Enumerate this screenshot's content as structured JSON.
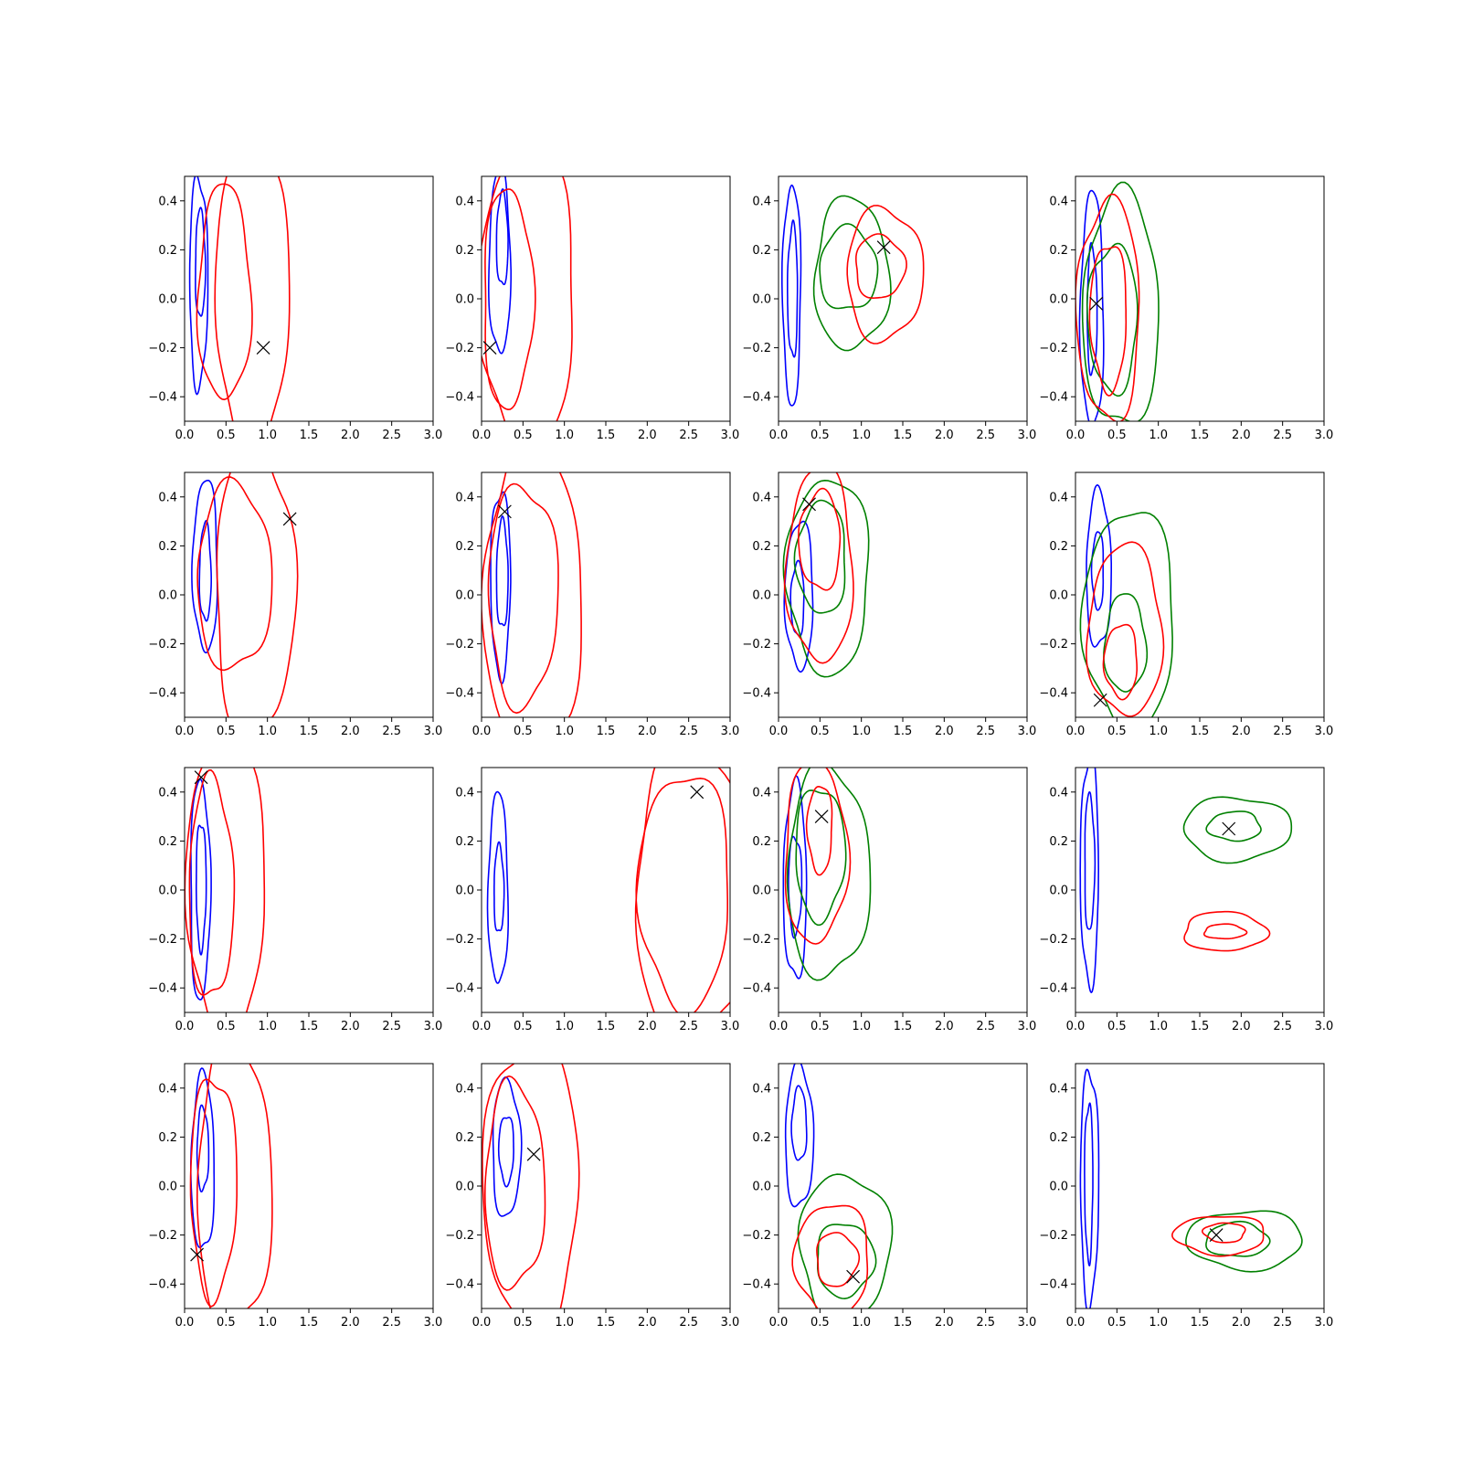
{
  "colors": {
    "blue": "#0000ff",
    "red": "#ff0000",
    "green": "#008000",
    "marker": "#000000"
  },
  "axes_common": {
    "xlim": [
      0,
      3
    ],
    "ylim": [
      -0.5,
      0.5
    ],
    "xticks": [
      "0.0",
      "0.5",
      "1.0",
      "1.5",
      "2.0",
      "2.5",
      "3.0"
    ],
    "yticks": [
      "−0.4",
      "−0.2",
      "0.0",
      "0.2",
      "0.4"
    ]
  },
  "chart_data": [
    {
      "type": "contour",
      "row": 1,
      "col": 1,
      "title": "",
      "xlim": [
        0,
        3
      ],
      "ylim": [
        -0.5,
        0.5
      ],
      "series": [
        {
          "color": "blue",
          "levels": [
            {
              "cx": 0.17,
              "cy": 0.07,
              "rx": 0.11,
              "ry": 0.43
            },
            {
              "cx": 0.19,
              "cy": 0.14,
              "rx": 0.06,
              "ry": 0.22
            }
          ]
        },
        {
          "color": "red",
          "levels": [
            {
              "cx": 0.48,
              "cy": 0.02,
              "rx": 0.32,
              "ry": 0.44
            },
            {
              "cx": 0.82,
              "cy": 0.0,
              "rx": 0.45,
              "ry": 0.62
            }
          ]
        }
      ],
      "marker": {
        "x": 0.95,
        "y": -0.2
      }
    },
    {
      "type": "contour",
      "row": 1,
      "col": 2,
      "title": "",
      "xlim": [
        0,
        3
      ],
      "ylim": [
        -0.5,
        0.5
      ],
      "series": [
        {
          "color": "blue",
          "levels": [
            {
              "cx": 0.22,
              "cy": 0.15,
              "rx": 0.13,
              "ry": 0.38
            },
            {
              "cx": 0.25,
              "cy": 0.24,
              "rx": 0.07,
              "ry": 0.19
            }
          ]
        },
        {
          "color": "red",
          "levels": [
            {
              "cx": 0.32,
              "cy": 0.0,
              "rx": 0.3,
              "ry": 0.45
            },
            {
              "cx": 0.55,
              "cy": 0.0,
              "rx": 0.58,
              "ry": 0.62
            }
          ]
        }
      ],
      "marker": {
        "x": 0.1,
        "y": -0.2
      }
    },
    {
      "type": "contour",
      "row": 1,
      "col": 3,
      "title": "",
      "xlim": [
        0,
        3
      ],
      "ylim": [
        -0.5,
        0.5
      ],
      "series": [
        {
          "color": "blue",
          "levels": [
            {
              "cx": 0.16,
              "cy": 0.02,
              "rx": 0.11,
              "ry": 0.45
            },
            {
              "cx": 0.17,
              "cy": 0.03,
              "rx": 0.06,
              "ry": 0.27
            }
          ]
        },
        {
          "color": "green",
          "levels": [
            {
              "cx": 0.88,
              "cy": 0.1,
              "rx": 0.45,
              "ry": 0.31
            },
            {
              "cx": 0.84,
              "cy": 0.12,
              "rx": 0.35,
              "ry": 0.17
            }
          ]
        },
        {
          "color": "red",
          "levels": [
            {
              "cx": 1.28,
              "cy": 0.1,
              "rx": 0.46,
              "ry": 0.27
            },
            {
              "cx": 1.22,
              "cy": 0.13,
              "rx": 0.3,
              "ry": 0.13
            }
          ]
        }
      ],
      "marker": {
        "x": 1.27,
        "y": 0.21
      }
    },
    {
      "type": "contour",
      "row": 1,
      "col": 4,
      "title": "",
      "xlim": [
        0,
        3
      ],
      "ylim": [
        -0.5,
        0.5
      ],
      "series": [
        {
          "color": "blue",
          "levels": [
            {
              "cx": 0.2,
              "cy": -0.05,
              "rx": 0.14,
              "ry": 0.48
            },
            {
              "cx": 0.2,
              "cy": -0.05,
              "rx": 0.06,
              "ry": 0.26
            }
          ]
        },
        {
          "color": "green",
          "levels": [
            {
              "cx": 0.55,
              "cy": -0.05,
              "rx": 0.46,
              "ry": 0.48
            },
            {
              "cx": 0.45,
              "cy": -0.08,
              "rx": 0.3,
              "ry": 0.3
            }
          ]
        },
        {
          "color": "red",
          "levels": [
            {
              "cx": 0.4,
              "cy": -0.05,
              "rx": 0.38,
              "ry": 0.45
            },
            {
              "cx": 0.4,
              "cy": -0.07,
              "rx": 0.22,
              "ry": 0.3
            }
          ]
        }
      ],
      "marker": {
        "x": 0.25,
        "y": -0.02
      }
    },
    {
      "type": "contour",
      "row": 2,
      "col": 1,
      "title": "",
      "xlim": [
        0,
        3
      ],
      "ylim": [
        -0.5,
        0.5
      ],
      "series": [
        {
          "color": "blue",
          "levels": [
            {
              "cx": 0.25,
              "cy": 0.12,
              "rx": 0.15,
              "ry": 0.35
            },
            {
              "cx": 0.25,
              "cy": 0.09,
              "rx": 0.07,
              "ry": 0.2
            }
          ]
        },
        {
          "color": "red",
          "levels": [
            {
              "cx": 0.6,
              "cy": 0.07,
              "rx": 0.45,
              "ry": 0.38
            },
            {
              "cx": 0.85,
              "cy": 0.02,
              "rx": 0.48,
              "ry": 0.6
            }
          ]
        }
      ],
      "marker": {
        "x": 1.27,
        "y": 0.31
      }
    },
    {
      "type": "contour",
      "row": 2,
      "col": 2,
      "title": "",
      "xlim": [
        0,
        3
      ],
      "ylim": [
        -0.5,
        0.5
      ],
      "series": [
        {
          "color": "blue",
          "levels": [
            {
              "cx": 0.23,
              "cy": 0.05,
              "rx": 0.12,
              "ry": 0.38
            },
            {
              "cx": 0.25,
              "cy": 0.08,
              "rx": 0.07,
              "ry": 0.22
            }
          ]
        },
        {
          "color": "red",
          "levels": [
            {
              "cx": 0.5,
              "cy": 0.0,
              "rx": 0.42,
              "ry": 0.45
            },
            {
              "cx": 0.62,
              "cy": 0.0,
              "rx": 0.6,
              "ry": 0.63
            }
          ]
        }
      ],
      "marker": {
        "x": 0.28,
        "y": 0.34
      }
    },
    {
      "type": "contour",
      "row": 2,
      "col": 3,
      "title": "",
      "xlim": [
        0,
        3
      ],
      "ylim": [
        -0.5,
        0.5
      ],
      "series": [
        {
          "color": "blue",
          "levels": [
            {
              "cx": 0.25,
              "cy": 0.0,
              "rx": 0.17,
              "ry": 0.3
            },
            {
              "cx": 0.23,
              "cy": -0.02,
              "rx": 0.08,
              "ry": 0.15
            }
          ]
        },
        {
          "color": "green",
          "levels": [
            {
              "cx": 0.6,
              "cy": 0.08,
              "rx": 0.5,
              "ry": 0.4
            },
            {
              "cx": 0.52,
              "cy": 0.15,
              "rx": 0.3,
              "ry": 0.23
            }
          ]
        },
        {
          "color": "red",
          "levels": [
            {
              "cx": 0.5,
              "cy": 0.12,
              "rx": 0.4,
              "ry": 0.4
            },
            {
              "cx": 0.5,
              "cy": 0.22,
              "rx": 0.25,
              "ry": 0.2
            }
          ]
        }
      ],
      "marker": {
        "x": 0.37,
        "y": 0.37
      }
    },
    {
      "type": "contour",
      "row": 2,
      "col": 4,
      "title": "",
      "xlim": [
        0,
        3
      ],
      "ylim": [
        -0.5,
        0.5
      ],
      "series": [
        {
          "color": "blue",
          "levels": [
            {
              "cx": 0.28,
              "cy": 0.1,
              "rx": 0.15,
              "ry": 0.32
            },
            {
              "cx": 0.27,
              "cy": 0.1,
              "rx": 0.07,
              "ry": 0.16
            }
          ]
        },
        {
          "color": "green",
          "levels": [
            {
              "cx": 0.65,
              "cy": -0.1,
              "rx": 0.55,
              "ry": 0.45
            },
            {
              "cx": 0.6,
              "cy": -0.2,
              "rx": 0.25,
              "ry": 0.2
            }
          ]
        },
        {
          "color": "red",
          "levels": [
            {
              "cx": 0.6,
              "cy": -0.15,
              "rx": 0.45,
              "ry": 0.35
            },
            {
              "cx": 0.55,
              "cy": -0.27,
              "rx": 0.2,
              "ry": 0.15
            }
          ]
        }
      ],
      "marker": {
        "x": 0.3,
        "y": -0.43
      }
    },
    {
      "type": "contour",
      "row": 3,
      "col": 1,
      "title": "",
      "xlim": [
        0,
        3
      ],
      "ylim": [
        -0.5,
        0.5
      ],
      "series": [
        {
          "color": "blue",
          "levels": [
            {
              "cx": 0.19,
              "cy": 0.0,
              "rx": 0.12,
              "ry": 0.45
            },
            {
              "cx": 0.2,
              "cy": 0.02,
              "rx": 0.06,
              "ry": 0.26
            }
          ]
        },
        {
          "color": "red",
          "levels": [
            {
              "cx": 0.32,
              "cy": 0.0,
              "rx": 0.27,
              "ry": 0.45
            },
            {
              "cx": 0.5,
              "cy": 0.0,
              "rx": 0.48,
              "ry": 0.6
            }
          ]
        }
      ],
      "marker": {
        "x": 0.2,
        "y": 0.46
      }
    },
    {
      "type": "contour",
      "row": 3,
      "col": 2,
      "title": "",
      "xlim": [
        0,
        3
      ],
      "ylim": [
        -0.5,
        0.5
      ],
      "series": [
        {
          "color": "blue",
          "levels": [
            {
              "cx": 0.2,
              "cy": 0.0,
              "rx": 0.12,
              "ry": 0.39
            },
            {
              "cx": 0.21,
              "cy": 0.0,
              "rx": 0.06,
              "ry": 0.18
            }
          ]
        },
        {
          "color": "red",
          "levels": [
            {
              "cx": 2.45,
              "cy": 0.0,
              "rx": 0.55,
              "ry": 0.48
            },
            {
              "cx": 2.55,
              "cy": -0.02,
              "rx": 0.7,
              "ry": 0.62
            }
          ]
        }
      ],
      "marker": {
        "x": 2.6,
        "y": 0.4
      }
    },
    {
      "type": "contour",
      "row": 3,
      "col": 3,
      "title": "",
      "xlim": [
        0,
        3
      ],
      "ylim": [
        -0.5,
        0.5
      ],
      "series": [
        {
          "color": "blue",
          "levels": [
            {
              "cx": 0.2,
              "cy": 0.03,
              "rx": 0.14,
              "ry": 0.4
            },
            {
              "cx": 0.2,
              "cy": 0.02,
              "rx": 0.08,
              "ry": 0.2
            }
          ]
        },
        {
          "color": "green",
          "levels": [
            {
              "cx": 0.6,
              "cy": 0.07,
              "rx": 0.5,
              "ry": 0.43
            },
            {
              "cx": 0.5,
              "cy": 0.15,
              "rx": 0.3,
              "ry": 0.27
            }
          ]
        },
        {
          "color": "red",
          "levels": [
            {
              "cx": 0.45,
              "cy": 0.15,
              "rx": 0.38,
              "ry": 0.37
            },
            {
              "cx": 0.5,
              "cy": 0.25,
              "rx": 0.15,
              "ry": 0.18
            }
          ]
        }
      ],
      "marker": {
        "x": 0.52,
        "y": 0.3
      }
    },
    {
      "type": "contour",
      "row": 3,
      "col": 4,
      "title": "",
      "xlim": [
        0,
        3
      ],
      "ylim": [
        -0.5,
        0.5
      ],
      "series": [
        {
          "color": "blue",
          "levels": [
            {
              "cx": 0.17,
              "cy": 0.08,
              "rx": 0.11,
              "ry": 0.47
            },
            {
              "cx": 0.17,
              "cy": 0.11,
              "rx": 0.06,
              "ry": 0.28
            }
          ]
        },
        {
          "color": "green",
          "levels": [
            {
              "cx": 1.95,
              "cy": 0.25,
              "rx": 0.65,
              "ry": 0.13
            },
            {
              "cx": 1.92,
              "cy": 0.26,
              "rx": 0.32,
              "ry": 0.06
            }
          ]
        },
        {
          "color": "red",
          "levels": [
            {
              "cx": 1.8,
              "cy": -0.17,
              "rx": 0.5,
              "ry": 0.08
            },
            {
              "cx": 1.8,
              "cy": -0.17,
              "rx": 0.25,
              "ry": 0.03
            }
          ]
        }
      ],
      "marker": {
        "x": 1.85,
        "y": 0.25
      }
    },
    {
      "type": "contour",
      "row": 4,
      "col": 1,
      "title": "",
      "xlim": [
        0,
        3
      ],
      "ylim": [
        -0.5,
        0.5
      ],
      "series": [
        {
          "color": "blue",
          "levels": [
            {
              "cx": 0.22,
              "cy": 0.09,
              "rx": 0.14,
              "ry": 0.36
            },
            {
              "cx": 0.22,
              "cy": 0.15,
              "rx": 0.07,
              "ry": 0.17
            }
          ]
        },
        {
          "color": "red",
          "levels": [
            {
              "cx": 0.35,
              "cy": 0.0,
              "rx": 0.28,
              "ry": 0.45
            },
            {
              "cx": 0.6,
              "cy": 0.0,
              "rx": 0.45,
              "ry": 0.6
            }
          ]
        }
      ],
      "marker": {
        "x": 0.15,
        "y": -0.28
      }
    },
    {
      "type": "contour",
      "row": 4,
      "col": 2,
      "title": "",
      "xlim": [
        0,
        3
      ],
      "ylim": [
        -0.5,
        0.5
      ],
      "series": [
        {
          "color": "blue",
          "levels": [
            {
              "cx": 0.3,
              "cy": 0.15,
              "rx": 0.17,
              "ry": 0.28
            },
            {
              "cx": 0.3,
              "cy": 0.15,
              "rx": 0.09,
              "ry": 0.14
            }
          ]
        },
        {
          "color": "red",
          "levels": [
            {
              "cx": 0.4,
              "cy": 0.0,
              "rx": 0.36,
              "ry": 0.42
            },
            {
              "cx": 0.6,
              "cy": 0.0,
              "rx": 0.58,
              "ry": 0.6
            }
          ]
        }
      ],
      "marker": {
        "x": 0.63,
        "y": 0.13
      }
    },
    {
      "type": "contour",
      "row": 4,
      "col": 3,
      "title": "",
      "xlim": [
        0,
        3
      ],
      "ylim": [
        -0.5,
        0.5
      ],
      "series": [
        {
          "color": "blue",
          "levels": [
            {
              "cx": 0.25,
              "cy": 0.2,
              "rx": 0.17,
              "ry": 0.29
            },
            {
              "cx": 0.25,
              "cy": 0.25,
              "rx": 0.09,
              "ry": 0.15
            }
          ]
        },
        {
          "color": "green",
          "levels": [
            {
              "cx": 0.8,
              "cy": -0.25,
              "rx": 0.55,
              "ry": 0.3
            },
            {
              "cx": 0.8,
              "cy": -0.3,
              "rx": 0.35,
              "ry": 0.15
            }
          ]
        },
        {
          "color": "red",
          "levels": [
            {
              "cx": 0.65,
              "cy": -0.3,
              "rx": 0.45,
              "ry": 0.23
            },
            {
              "cx": 0.7,
              "cy": -0.3,
              "rx": 0.25,
              "ry": 0.11
            }
          ]
        }
      ],
      "marker": {
        "x": 0.9,
        "y": -0.37
      }
    },
    {
      "type": "contour",
      "row": 4,
      "col": 4,
      "title": "",
      "xlim": [
        0,
        3
      ],
      "ylim": [
        -0.5,
        0.5
      ],
      "series": [
        {
          "color": "blue",
          "levels": [
            {
              "cx": 0.17,
              "cy": 0.0,
              "rx": 0.11,
              "ry": 0.48
            },
            {
              "cx": 0.16,
              "cy": 0.02,
              "rx": 0.05,
              "ry": 0.32
            }
          ]
        },
        {
          "color": "green",
          "levels": [
            {
              "cx": 2.05,
              "cy": -0.22,
              "rx": 0.7,
              "ry": 0.12
            },
            {
              "cx": 1.95,
              "cy": -0.22,
              "rx": 0.38,
              "ry": 0.07
            }
          ]
        },
        {
          "color": "red",
          "levels": [
            {
              "cx": 1.75,
              "cy": -0.2,
              "rx": 0.55,
              "ry": 0.08
            },
            {
              "cx": 1.8,
              "cy": -0.19,
              "rx": 0.25,
              "ry": 0.04
            }
          ]
        }
      ],
      "marker": {
        "x": 1.7,
        "y": -0.2
      }
    }
  ]
}
